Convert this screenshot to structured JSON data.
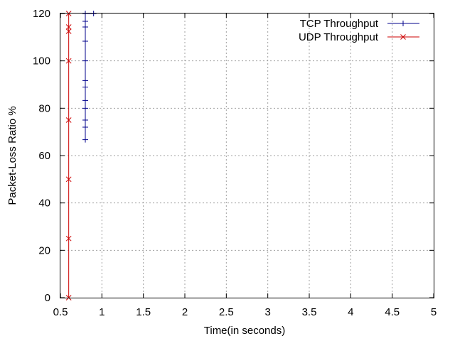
{
  "chart_data": {
    "type": "line",
    "title": "",
    "xlabel": "Time(in seconds)",
    "ylabel": "Packet-Loss Ratio %",
    "xlim": [
      0.5,
      5
    ],
    "ylim": [
      0,
      120
    ],
    "xticks": [
      "0.5",
      "1",
      "1.5",
      "2",
      "2.5",
      "3",
      "3.5",
      "4",
      "4.5",
      "5"
    ],
    "yticks": [
      "0",
      "20",
      "40",
      "60",
      "80",
      "100",
      "120"
    ],
    "grid": true,
    "legend_position": "top-right",
    "series": [
      {
        "name": "TCP Throughput",
        "color": "#00008b",
        "marker": "plus",
        "points": [
          [
            0.8,
            66.7
          ],
          [
            0.8,
            72.0
          ],
          [
            0.8,
            75.0
          ],
          [
            0.8,
            80.0
          ],
          [
            0.8,
            83.3
          ],
          [
            0.8,
            88.9
          ],
          [
            0.8,
            91.7
          ],
          [
            0.8,
            100.0
          ],
          [
            0.8,
            108.3
          ],
          [
            0.8,
            114.3
          ],
          [
            0.8,
            116.7
          ],
          [
            0.8,
            120.0
          ],
          [
            0.9,
            120.0
          ]
        ]
      },
      {
        "name": "UDP Throughput",
        "color": "#cc0000",
        "marker": "cross",
        "points": [
          [
            0.6,
            0
          ],
          [
            0.6,
            25.0
          ],
          [
            0.6,
            50.0
          ],
          [
            0.6,
            75.0
          ],
          [
            0.6,
            100.0
          ],
          [
            0.6,
            112.5
          ],
          [
            0.6,
            114.3
          ],
          [
            0.6,
            120.0
          ]
        ]
      }
    ]
  }
}
